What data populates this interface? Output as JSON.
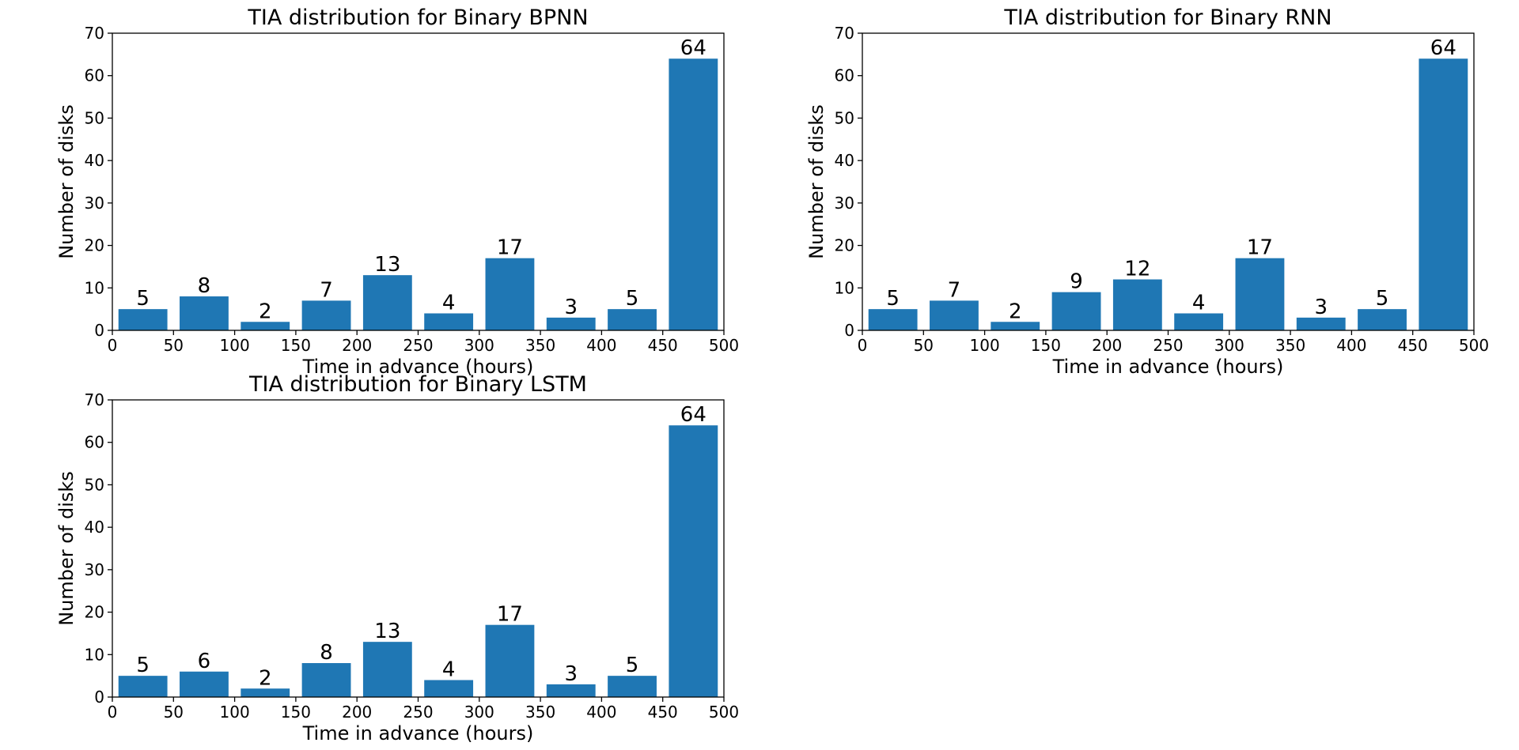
{
  "chart_data": [
    {
      "type": "bar",
      "title": "TIA distribution for Binary BPNN",
      "xlabel": "Time in advance (hours)",
      "ylabel": "Number of disks",
      "bins": [
        [
          0,
          50
        ],
        [
          50,
          100
        ],
        [
          100,
          150
        ],
        [
          150,
          200
        ],
        [
          200,
          250
        ],
        [
          250,
          300
        ],
        [
          300,
          350
        ],
        [
          350,
          400
        ],
        [
          400,
          450
        ],
        [
          450,
          500
        ]
      ],
      "values": [
        5,
        8,
        2,
        7,
        13,
        4,
        17,
        3,
        5,
        64
      ],
      "xlim": [
        0,
        500
      ],
      "ylim": [
        0,
        70
      ],
      "xticks": [
        0,
        50,
        100,
        150,
        200,
        250,
        300,
        350,
        400,
        450,
        500
      ],
      "yticks": [
        0,
        10,
        20,
        30,
        40,
        50,
        60,
        70
      ],
      "grid": false,
      "color": "#1f77b4"
    },
    {
      "type": "bar",
      "title": "TIA distribution for Binary RNN",
      "xlabel": "Time in advance (hours)",
      "ylabel": "Number of disks",
      "bins": [
        [
          0,
          50
        ],
        [
          50,
          100
        ],
        [
          100,
          150
        ],
        [
          150,
          200
        ],
        [
          200,
          250
        ],
        [
          250,
          300
        ],
        [
          300,
          350
        ],
        [
          350,
          400
        ],
        [
          400,
          450
        ],
        [
          450,
          500
        ]
      ],
      "values": [
        5,
        7,
        2,
        9,
        12,
        4,
        17,
        3,
        5,
        64
      ],
      "xlim": [
        0,
        500
      ],
      "ylim": [
        0,
        70
      ],
      "xticks": [
        0,
        50,
        100,
        150,
        200,
        250,
        300,
        350,
        400,
        450,
        500
      ],
      "yticks": [
        0,
        10,
        20,
        30,
        40,
        50,
        60,
        70
      ],
      "grid": false,
      "color": "#1f77b4"
    },
    {
      "type": "bar",
      "title": "TIA distribution for Binary LSTM",
      "xlabel": "Time in advance (hours)",
      "ylabel": "Number of disks",
      "bins": [
        [
          0,
          50
        ],
        [
          50,
          100
        ],
        [
          100,
          150
        ],
        [
          150,
          200
        ],
        [
          200,
          250
        ],
        [
          250,
          300
        ],
        [
          300,
          350
        ],
        [
          350,
          400
        ],
        [
          400,
          450
        ],
        [
          450,
          500
        ]
      ],
      "values": [
        5,
        6,
        2,
        8,
        13,
        4,
        17,
        3,
        5,
        64
      ],
      "xlim": [
        0,
        500
      ],
      "ylim": [
        0,
        70
      ],
      "xticks": [
        0,
        50,
        100,
        150,
        200,
        250,
        300,
        350,
        400,
        450,
        500
      ],
      "yticks": [
        0,
        10,
        20,
        30,
        40,
        50,
        60,
        70
      ],
      "grid": false,
      "color": "#1f77b4"
    }
  ]
}
